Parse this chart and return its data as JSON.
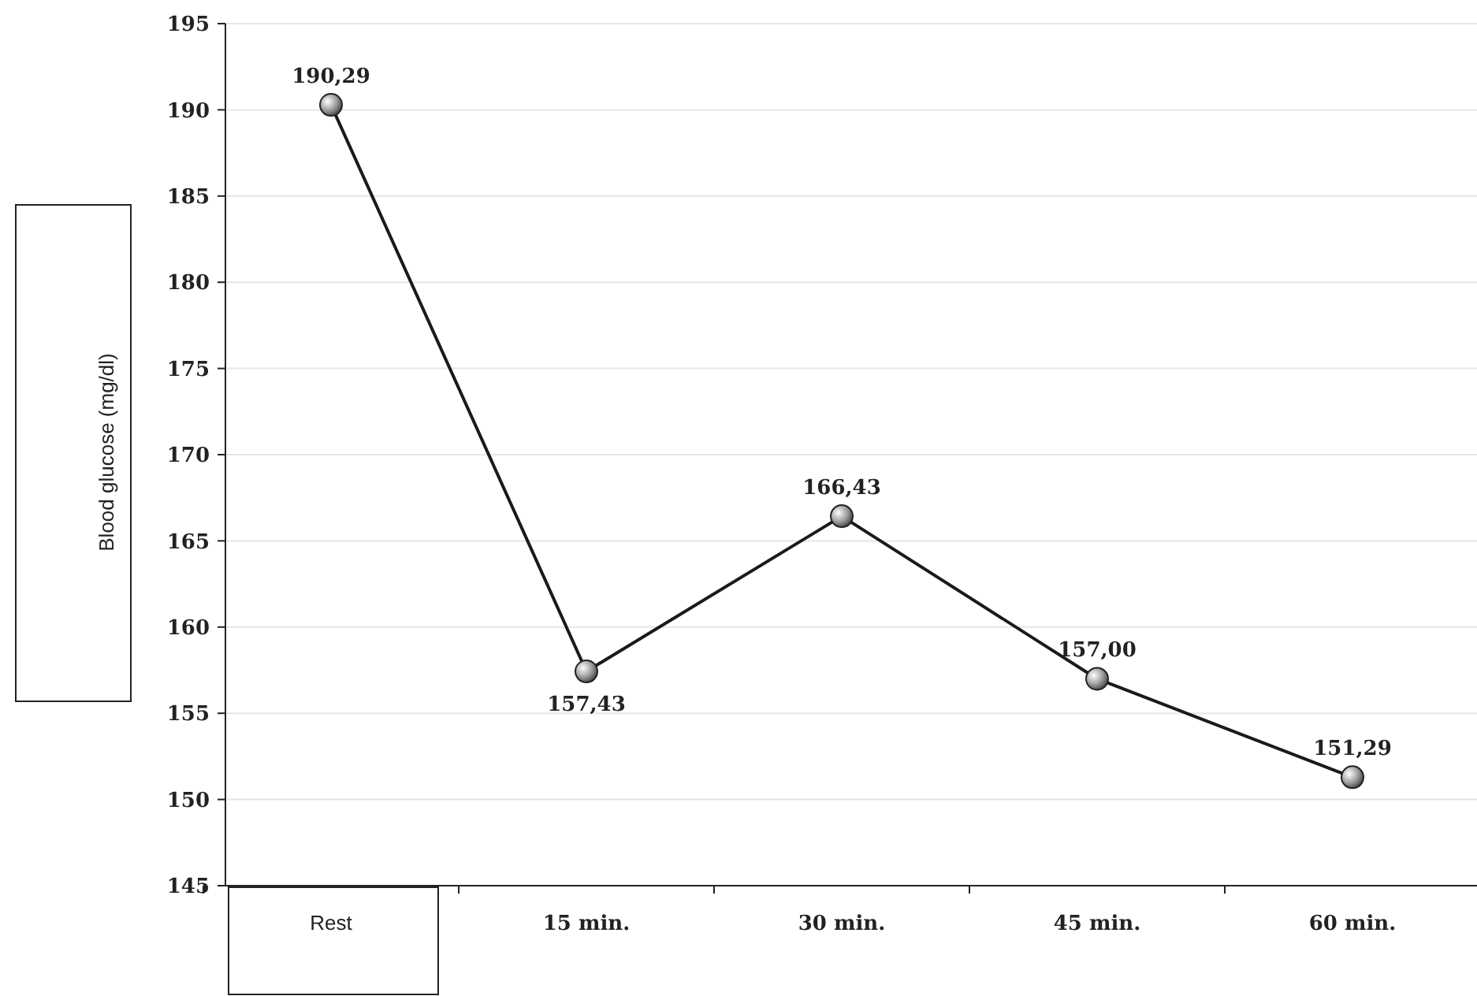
{
  "chart_data": {
    "type": "line",
    "ylabel": "Blood glucose (mg/dl)",
    "categories": [
      "Rest",
      "15 min.",
      "30 min.",
      "45 min.",
      "60 min."
    ],
    "series": [
      {
        "color": "#1a1a1a",
        "values": [
          190.29,
          157.43,
          166.43,
          157.0,
          151.29
        ],
        "value_labels": [
          "190,29",
          "157,43",
          "166,43",
          "157,00",
          "151,29"
        ]
      }
    ],
    "ylim": [
      145,
      195
    ],
    "yticks": [
      145,
      150,
      155,
      160,
      165,
      170,
      175,
      180,
      185,
      190,
      195
    ],
    "grid": "y",
    "marker": "circle",
    "line_style": "solid"
  }
}
